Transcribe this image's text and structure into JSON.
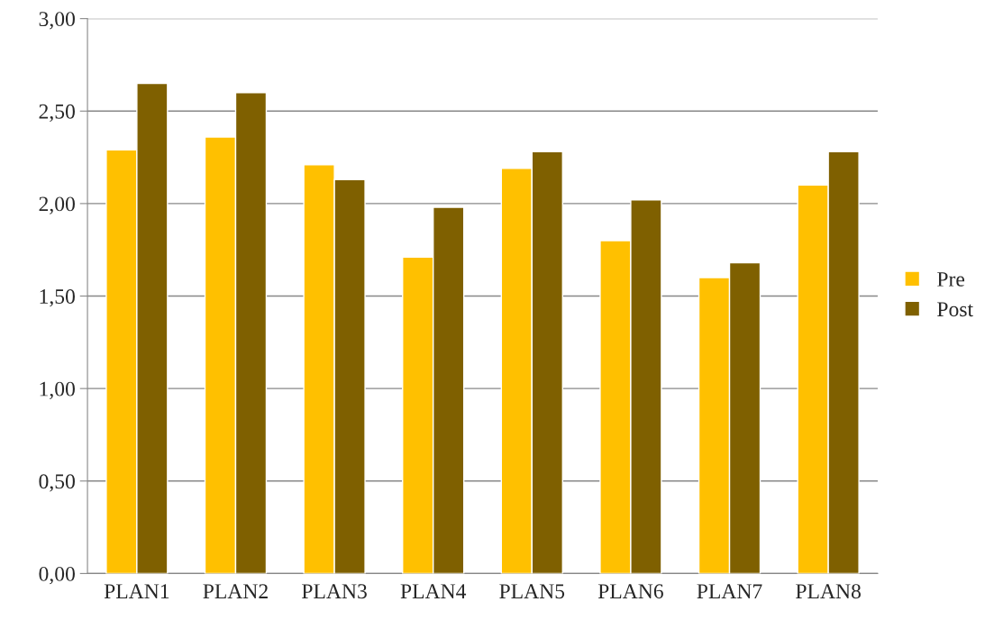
{
  "chart_data": {
    "type": "bar",
    "categories": [
      "PLAN1",
      "PLAN2",
      "PLAN3",
      "PLAN4",
      "PLAN5",
      "PLAN6",
      "PLAN7",
      "PLAN8"
    ],
    "series": [
      {
        "name": "Pre",
        "color": "#ffc000",
        "values": [
          2.29,
          2.36,
          2.21,
          1.71,
          2.19,
          1.8,
          1.6,
          2.1
        ]
      },
      {
        "name": "Post",
        "color": "#7f6000",
        "values": [
          2.65,
          2.6,
          2.13,
          1.98,
          2.28,
          2.02,
          1.68,
          2.28
        ]
      }
    ],
    "ylim": [
      0,
      3
    ],
    "yticks": [
      {
        "value": 0,
        "label": "0,00"
      },
      {
        "value": 0.5,
        "label": "0,50"
      },
      {
        "value": 1,
        "label": "1,00"
      },
      {
        "value": 1.5,
        "label": "1,50"
      },
      {
        "value": 2,
        "label": "2,00"
      },
      {
        "value": 2.5,
        "label": "2,50"
      },
      {
        "value": 3,
        "label": "3,00"
      }
    ],
    "grid": "y",
    "legend": "right"
  }
}
